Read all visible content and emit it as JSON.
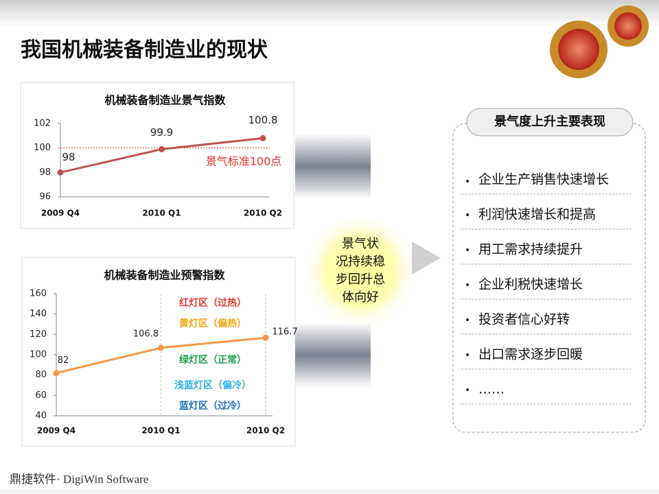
{
  "slide": {
    "title": "我国机械装备制造业的现状",
    "summary": [
      "景气状",
      "况持续稳",
      "步回升总",
      "体向好"
    ],
    "box_title": "景气度上升主要表现",
    "bullets": [
      "企业生产销售快速增长",
      "利润快速增长和提高",
      "用工需求持续提升",
      "企业利税快速增长",
      "投资者信心好转",
      "出口需求逐步回暖",
      "……"
    ],
    "logo": "鼎捷软件· DigiWin Software"
  },
  "chart_data": [
    {
      "type": "line",
      "title": "机械装备制造业景气指数",
      "categories": [
        "2009 Q4",
        "2010 Q1",
        "2010 Q2"
      ],
      "values": [
        98,
        99.9,
        100.8
      ],
      "color": "#c0504d",
      "ylim": [
        96,
        102
      ],
      "yticks": [
        96,
        98,
        100,
        102
      ],
      "reference": {
        "value": 100,
        "label": "景气标准100点",
        "color": "#e8302a"
      }
    },
    {
      "type": "line",
      "title": "机械装备制造业预警指数",
      "categories": [
        "2009 Q4",
        "2010 Q1",
        "2010 Q2"
      ],
      "values": [
        82,
        106.8,
        116.7
      ],
      "color": "#f79646",
      "ylim": [
        40,
        160
      ],
      "yticks": [
        40,
        60,
        80,
        100,
        120,
        140,
        160
      ],
      "annotations": [
        {
          "text": "红灯区（过热）",
          "color": "#e03c31"
        },
        {
          "text": "黄灯区（偏热）",
          "color": "#f0a30a"
        },
        {
          "text": "绿灯区（正常）",
          "color": "#1aa34a"
        },
        {
          "text": "浅蓝灯区（偏冷）",
          "color": "#2fb2e0"
        },
        {
          "text": "蓝灯区（过冷）",
          "color": "#1f6fb8"
        }
      ]
    }
  ]
}
